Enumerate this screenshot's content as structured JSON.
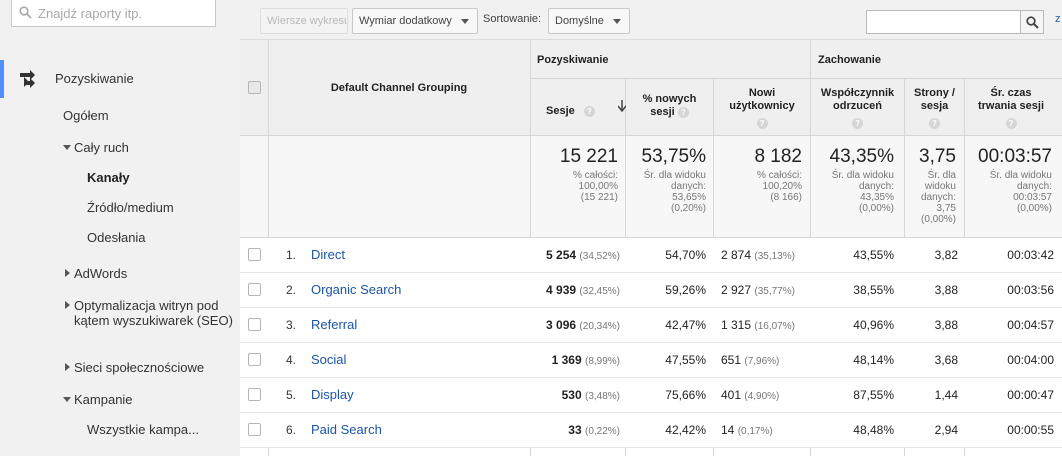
{
  "sidebar": {
    "search_placeholder": "Znajdź raporty itp.",
    "section": "Pozyskiwanie",
    "items": {
      "overview": "Ogółem",
      "all_traffic": "Cały ruch",
      "channels": "Kanały",
      "source_medium": "Źródło/medium",
      "referrals": "Odesłania",
      "adwords": "AdWords",
      "seo": "Optymalizacja witryn pod kątem wyszukiwarek (SEO)",
      "social": "Sieci społecznościowe",
      "campaigns": "Kampanie",
      "all_campaigns": "Wszystkie kampa..."
    }
  },
  "toolbar": {
    "plot_rows": "Wiersze wykresu",
    "secondary_dimension": "Wymiar dodatkowy",
    "sort_label": "Sortowanie:",
    "sort_value": "Domyślne",
    "search_value": "",
    "link_text": "z"
  },
  "table": {
    "dimension_header": "Default Channel Grouping",
    "groups": {
      "acquisition": "Pozyskiwanie",
      "behavior": "Zachowanie"
    },
    "columns": {
      "sessions": "Sesje",
      "new_sessions_1": "% nowych",
      "new_sessions_2": "sesji",
      "new_users_1": "Nowi",
      "new_users_2": "użytkownicy",
      "bounce_1": "Współczynnik",
      "bounce_2": "odrzuceń",
      "pages_1": "Strony /",
      "pages_2": "sesja",
      "duration_1": "Śr. czas",
      "duration_2": "trwania sesji"
    },
    "summary": {
      "sessions": "15 221",
      "sessions_sub": [
        "% całości:",
        "100,00%",
        "(15 221)"
      ],
      "new_sessions": "53,75%",
      "new_sessions_sub": [
        "Śr. dla widoku",
        "danych:",
        "53,65%",
        "(0,20%)"
      ],
      "new_users": "8 182",
      "new_users_sub": [
        "% całości:",
        "100,20%",
        "(8 166)"
      ],
      "bounce": "43,35%",
      "bounce_sub": [
        "Śr. dla widoku",
        "danych:",
        "43,35%",
        "(0,00%)"
      ],
      "pages": "3,75",
      "pages_sub": [
        "Śr. dla",
        "widoku",
        "danych:",
        "3,75",
        "(0,00%)"
      ],
      "duration": "00:03:57",
      "duration_sub": [
        "Śr. dla widoku",
        "danych:",
        "00:03:57",
        "(0,00%)"
      ]
    },
    "rows": [
      {
        "n": "1.",
        "channel": "Direct",
        "sessions": "5 254",
        "sessions_pct": "(34,52%)",
        "new_sessions": "54,70%",
        "new_users": "2 874",
        "new_users_pct": "(35,13%)",
        "bounce": "43,55%",
        "pages": "3,82",
        "duration": "00:03:42"
      },
      {
        "n": "2.",
        "channel": "Organic Search",
        "sessions": "4 939",
        "sessions_pct": "(32,45%)",
        "new_sessions": "59,26%",
        "new_users": "2 927",
        "new_users_pct": "(35,77%)",
        "bounce": "38,55%",
        "pages": "3,88",
        "duration": "00:03:56"
      },
      {
        "n": "3.",
        "channel": "Referral",
        "sessions": "3 096",
        "sessions_pct": "(20,34%)",
        "new_sessions": "42,47%",
        "new_users": "1 315",
        "new_users_pct": "(16,07%)",
        "bounce": "40,96%",
        "pages": "3,88",
        "duration": "00:04:57"
      },
      {
        "n": "4.",
        "channel": "Social",
        "sessions": "1 369",
        "sessions_pct": "(8,99%)",
        "new_sessions": "47,55%",
        "new_users": "651",
        "new_users_pct": "(7,96%)",
        "bounce": "48,14%",
        "pages": "3,68",
        "duration": "00:04:00"
      },
      {
        "n": "5.",
        "channel": "Display",
        "sessions": "530",
        "sessions_pct": "(3,48%)",
        "new_sessions": "75,66%",
        "new_users": "401",
        "new_users_pct": "(4,90%)",
        "bounce": "87,55%",
        "pages": "1,44",
        "duration": "00:00:47"
      },
      {
        "n": "6.",
        "channel": "Paid Search",
        "sessions": "33",
        "sessions_pct": "(0,22%)",
        "new_sessions": "42,42%",
        "new_users": "14",
        "new_users_pct": "(0,17%)",
        "bounce": "48,48%",
        "pages": "2,94",
        "duration": "00:00:55"
      }
    ]
  },
  "colors": {
    "accent": "#4d90fe",
    "link": "#1a55a8",
    "sidebar_bg": "#f1f1f1"
  },
  "icons": [
    "search-icon",
    "acquisition-icon",
    "help-icon",
    "sort-down-arrow-icon"
  ]
}
